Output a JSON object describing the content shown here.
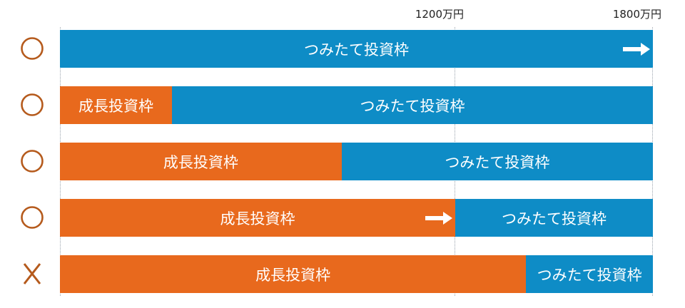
{
  "axis": {
    "ticks": [
      {
        "label": "1200万円",
        "value": 1200
      },
      {
        "label": "1800万円",
        "value": 1800
      }
    ],
    "max": 1800
  },
  "colors": {
    "tsumitate": "#0e8cc6",
    "seicho": "#e8691d",
    "mark": "#b55a1c"
  },
  "rows": [
    {
      "mark": "○",
      "mark_icon": "circle-mark-icon",
      "seicho": {
        "label": "",
        "amount": 0
      },
      "tsumitate": {
        "label": "つみたて投資枠",
        "amount": 1800
      },
      "arrow": "tsumitate"
    },
    {
      "mark": "○",
      "mark_icon": "circle-mark-icon",
      "seicho": {
        "label": "成長投資枠",
        "amount": 340
      },
      "tsumitate": {
        "label": "つみたて投資枠",
        "amount": 1460
      }
    },
    {
      "mark": "○",
      "mark_icon": "circle-mark-icon",
      "seicho": {
        "label": "成長投資枠",
        "amount": 855
      },
      "tsumitate": {
        "label": "つみたて投資枠",
        "amount": 945
      }
    },
    {
      "mark": "○",
      "mark_icon": "circle-mark-icon",
      "seicho": {
        "label": "成長投資枠",
        "amount": 1200
      },
      "tsumitate": {
        "label": "つみたて投資枠",
        "amount": 600
      },
      "arrow": "seicho"
    },
    {
      "mark": "X",
      "mark_icon": "cross-mark-icon",
      "seicho": {
        "label": "成長投資枠",
        "amount": 1415
      },
      "tsumitate": {
        "label": "つみたて投資枠",
        "amount": 385
      }
    }
  ]
}
